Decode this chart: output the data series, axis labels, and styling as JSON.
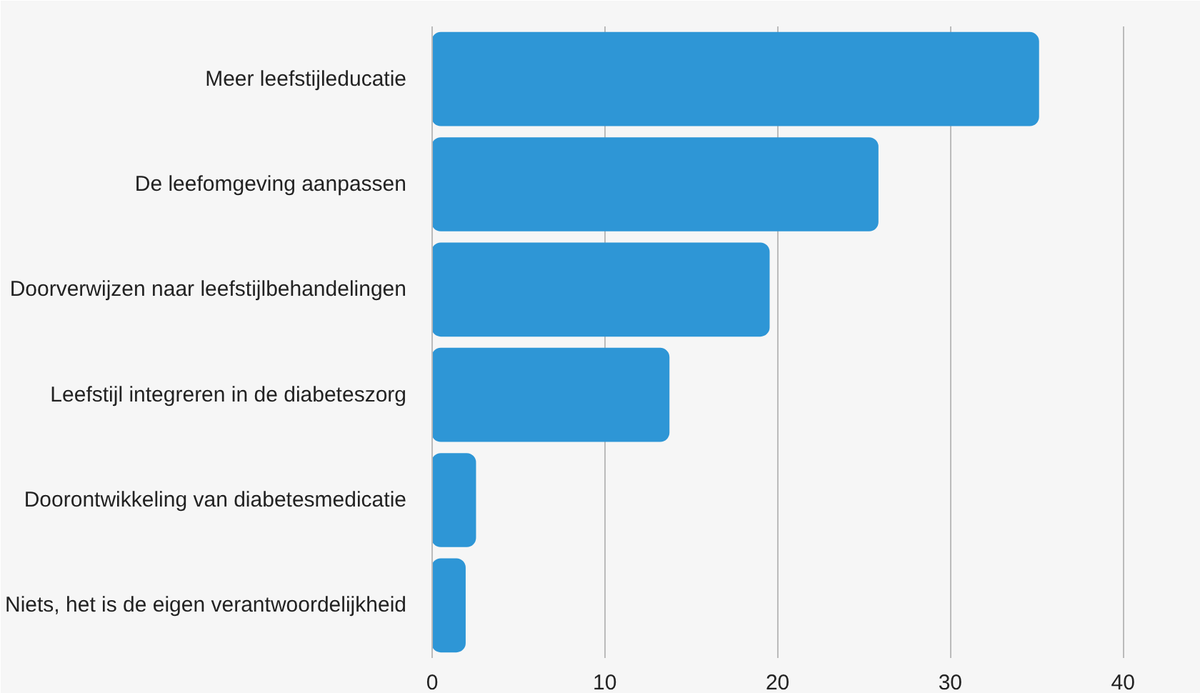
{
  "chart_data": {
    "type": "bar",
    "orientation": "horizontal",
    "categories": [
      "Meer leefstijleducatie",
      "De leefomgeving aanpassen",
      "Doorverwijzen naar leefstijlbehandelingen",
      "Leefstijl integreren in de diabeteszorg",
      "Doorontwikkeling van diabetesmedicatie",
      "Niets, het is de eigen verantwoordelijkheid"
    ],
    "values": [
      35.1,
      25.8,
      19.5,
      13.7,
      2.5,
      1.9
    ],
    "color": "#2e96d6",
    "xlim": [
      0,
      44.5
    ],
    "xticks": [
      0,
      10,
      20,
      30,
      40
    ],
    "grid": "x"
  }
}
